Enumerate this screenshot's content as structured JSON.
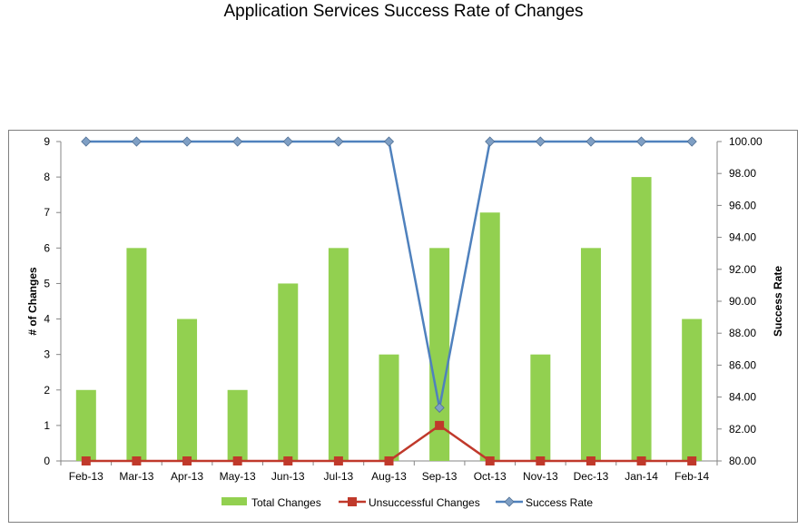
{
  "chart_data": {
    "type": "bar",
    "title": "Application Services Success Rate of Changes",
    "categories": [
      "Feb-13",
      "Mar-13",
      "Apr-13",
      "May-13",
      "Jun-13",
      "Jul-13",
      "Aug-13",
      "Sep-13",
      "Oct-13",
      "Nov-13",
      "Dec-13",
      "Jan-14",
      "Feb-14"
    ],
    "series": [
      {
        "name": "Total Changes",
        "type": "bar",
        "axis": "left",
        "color": "#92d050",
        "values": [
          2,
          6,
          4,
          2,
          5,
          6,
          3,
          6,
          7,
          3,
          6,
          8,
          4
        ]
      },
      {
        "name": "Unsuccessful Changes",
        "type": "line",
        "axis": "left",
        "color": "#c0392b",
        "marker": "square",
        "values": [
          0,
          0,
          0,
          0,
          0,
          0,
          0,
          1,
          0,
          0,
          0,
          0,
          0
        ]
      },
      {
        "name": "Success Rate",
        "type": "line",
        "axis": "right",
        "color": "#4f81bd",
        "marker": "diamond",
        "values": [
          100,
          100,
          100,
          100,
          100,
          100,
          100,
          83.33,
          100,
          100,
          100,
          100,
          100
        ]
      }
    ],
    "ylabel": "# of Changes",
    "ylim": [
      0,
      9
    ],
    "yticks": [
      "0",
      "1",
      "2",
      "3",
      "4",
      "5",
      "6",
      "7",
      "8",
      "9"
    ],
    "y2label": "Success Rate",
    "y2lim": [
      80,
      100
    ],
    "y2ticks": [
      "80.00",
      "82.00",
      "84.00",
      "86.00",
      "88.00",
      "90.00",
      "92.00",
      "94.00",
      "96.00",
      "98.00",
      "100.00"
    ],
    "legend_position": "bottom",
    "grid": false
  }
}
